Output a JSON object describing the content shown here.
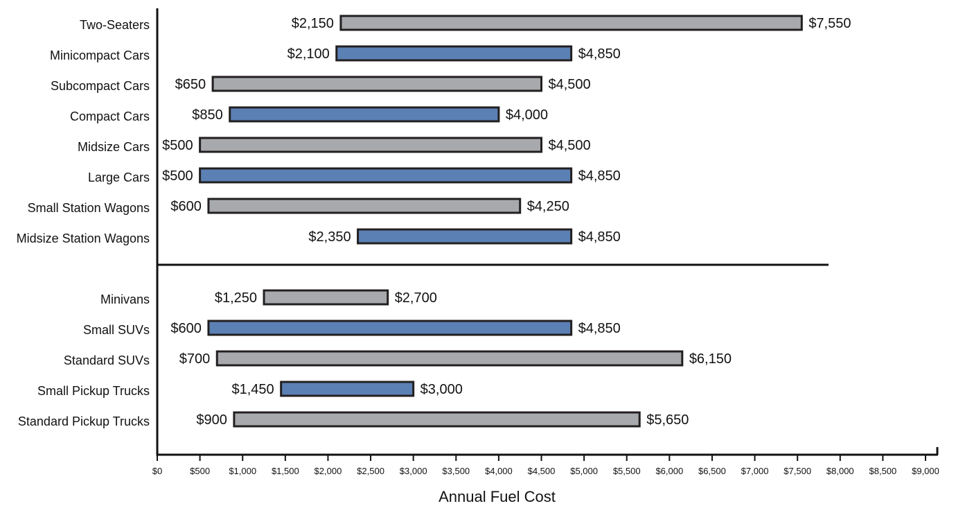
{
  "chart_data": {
    "type": "bar",
    "orientation": "horizontal",
    "bar_style": "floating-range",
    "title": "",
    "xlabel": "Annual Fuel Cost",
    "ylabel": "",
    "xlim": [
      0,
      9000
    ],
    "x_ticks": [
      {
        "value": 0,
        "label": "$0"
      },
      {
        "value": 500,
        "label": "$500"
      },
      {
        "value": 1000,
        "label": "$1,000"
      },
      {
        "value": 1500,
        "label": "$1,500"
      },
      {
        "value": 2000,
        "label": "$2,000"
      },
      {
        "value": 2500,
        "label": "$2,500"
      },
      {
        "value": 3000,
        "label": "$3,000"
      },
      {
        "value": 3500,
        "label": "$3,500"
      },
      {
        "value": 4000,
        "label": "$4,000"
      },
      {
        "value": 4500,
        "label": "$4,500"
      },
      {
        "value": 5000,
        "label": "$5,000"
      },
      {
        "value": 5500,
        "label": "$5,500"
      },
      {
        "value": 6000,
        "label": "$6,000"
      },
      {
        "value": 6500,
        "label": "$6,500"
      },
      {
        "value": 7000,
        "label": "$7,000"
      },
      {
        "value": 7500,
        "label": "$7,500"
      },
      {
        "value": 8000,
        "label": "$8,000"
      },
      {
        "value": 8500,
        "label": "$8,500"
      },
      {
        "value": 9000,
        "label": "$9,000"
      }
    ],
    "grid": false,
    "legend": "none",
    "colors": {
      "gray": "#a7a9ac",
      "blue": "#5b80b4",
      "outline": "#231f20"
    },
    "groups": [
      {
        "bars": [
          {
            "category": "Two-Seaters",
            "low": 2150,
            "high": 7550,
            "low_label": "$2,150",
            "high_label": "$7,550",
            "color": "gray"
          },
          {
            "category": "Minicompact Cars",
            "low": 2100,
            "high": 4850,
            "low_label": "$2,100",
            "high_label": "$4,850",
            "color": "blue"
          },
          {
            "category": "Subcompact Cars",
            "low": 650,
            "high": 4500,
            "low_label": "$650",
            "high_label": "$4,500",
            "color": "gray"
          },
          {
            "category": "Compact Cars",
            "low": 850,
            "high": 4000,
            "low_label": "$850",
            "high_label": "$4,000",
            "color": "blue"
          },
          {
            "category": "Midsize Cars",
            "low": 500,
            "high": 4500,
            "low_label": "$500",
            "high_label": "$4,500",
            "color": "gray"
          },
          {
            "category": "Large Cars",
            "low": 500,
            "high": 4850,
            "low_label": "$500",
            "high_label": "$4,850",
            "color": "blue"
          },
          {
            "category": "Small Station Wagons",
            "low": 600,
            "high": 4250,
            "low_label": "$600",
            "high_label": "$4,250",
            "color": "gray"
          },
          {
            "category": "Midsize Station Wagons",
            "low": 2350,
            "high": 4850,
            "low_label": "$2,350",
            "high_label": "$4,850",
            "color": "blue"
          }
        ]
      },
      {
        "bars": [
          {
            "category": "Minivans",
            "low": 1250,
            "high": 2700,
            "low_label": "$1,250",
            "high_label": "$2,700",
            "color": "gray"
          },
          {
            "category": "Small SUVs",
            "low": 600,
            "high": 4850,
            "low_label": "$600",
            "high_label": "$4,850",
            "color": "blue"
          },
          {
            "category": "Standard SUVs",
            "low": 700,
            "high": 6150,
            "low_label": "$700",
            "high_label": "$6,150",
            "color": "gray"
          },
          {
            "category": "Small Pickup Trucks",
            "low": 1450,
            "high": 3000,
            "low_label": "$1,450",
            "high_label": "$3,000",
            "color": "blue"
          },
          {
            "category": "Standard Pickup Trucks",
            "low": 900,
            "high": 5650,
            "low_label": "$900",
            "high_label": "$5,650",
            "color": "gray"
          }
        ]
      }
    ]
  }
}
